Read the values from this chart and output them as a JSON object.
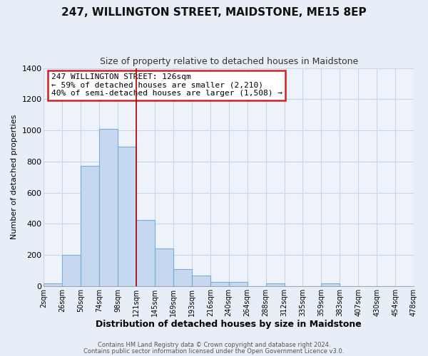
{
  "title": "247, WILLINGTON STREET, MAIDSTONE, ME15 8EP",
  "subtitle": "Size of property relative to detached houses in Maidstone",
  "xlabel": "Distribution of detached houses by size in Maidstone",
  "ylabel": "Number of detached properties",
  "footer_line1": "Contains HM Land Registry data © Crown copyright and database right 2024.",
  "footer_line2": "Contains public sector information licensed under the Open Government Licence v3.0.",
  "bin_labels": [
    "2sqm",
    "26sqm",
    "50sqm",
    "74sqm",
    "98sqm",
    "121sqm",
    "145sqm",
    "169sqm",
    "193sqm",
    "216sqm",
    "240sqm",
    "264sqm",
    "288sqm",
    "312sqm",
    "335sqm",
    "359sqm",
    "383sqm",
    "407sqm",
    "430sqm",
    "454sqm",
    "478sqm"
  ],
  "bar_heights": [
    20,
    200,
    770,
    1010,
    895,
    425,
    240,
    110,
    70,
    25,
    25,
    0,
    20,
    0,
    0,
    20,
    0,
    0,
    0,
    0
  ],
  "bar_color": "#c5d8f0",
  "bar_edge_color": "#7aadd4",
  "vline_position": 5,
  "vline_color": "#aa0000",
  "ylim": [
    0,
    1400
  ],
  "yticks": [
    0,
    200,
    400,
    600,
    800,
    1000,
    1200,
    1400
  ],
  "annotation_title": "247 WILLINGTON STREET: 126sqm",
  "annotation_line1": "← 59% of detached houses are smaller (2,210)",
  "annotation_line2": "40% of semi-detached houses are larger (1,508) →",
  "annotation_box_facecolor": "#ffffff",
  "annotation_box_edgecolor": "#cc2222",
  "grid_color": "#c8d4e8",
  "background_color": "#e8eef8",
  "plot_bg_color": "#eef2fa"
}
